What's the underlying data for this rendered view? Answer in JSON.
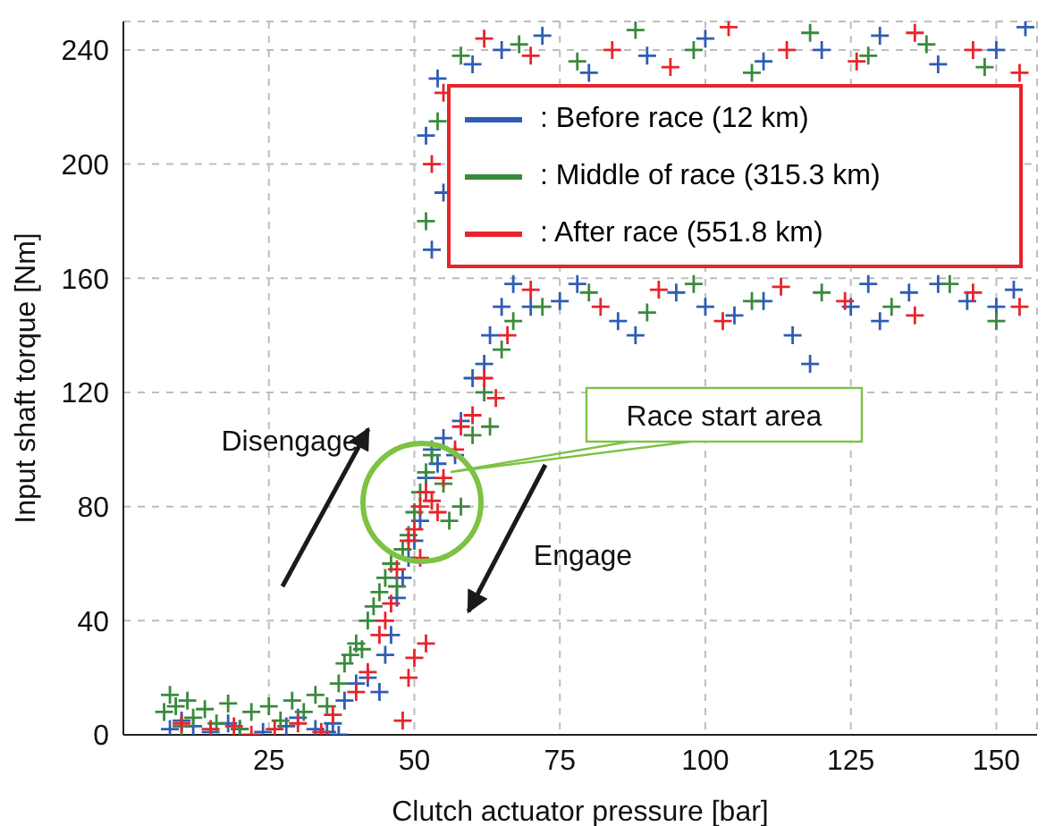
{
  "chart_data": {
    "type": "scatter",
    "xlabel": "Clutch actuator pressure [bar]",
    "ylabel": "Input shaft  torque [Nm]",
    "xlim": [
      0,
      157
    ],
    "xticks": [
      25,
      50,
      75,
      100,
      125,
      150
    ],
    "ylim": [
      0,
      250
    ],
    "yticks": [
      0,
      40,
      80,
      120,
      160,
      200,
      240
    ],
    "grid": true,
    "legend": "top right",
    "marker": "cross",
    "annotations": [
      "Disengage",
      "Engage",
      "Race start area"
    ],
    "series": [
      {
        "name": ": Before race (12 km)",
        "color": "#2f5db5",
        "x": [
          8,
          10,
          12,
          15,
          18,
          20,
          24,
          28,
          30,
          33,
          35,
          36,
          37,
          38,
          40,
          42,
          44,
          45,
          46,
          47,
          48,
          49,
          50,
          51,
          52,
          53,
          54,
          55,
          57,
          58,
          60,
          62,
          63,
          65,
          67,
          70,
          75,
          78,
          85,
          88,
          95,
          100,
          105,
          110,
          115,
          118,
          125,
          128,
          130,
          135,
          140,
          145,
          150,
          153,
          60,
          65,
          72,
          80,
          90,
          100,
          110,
          120,
          130,
          140,
          150,
          155,
          53,
          55,
          52,
          54
        ],
        "values": [
          2,
          5,
          3,
          1,
          4,
          2,
          1,
          3,
          6,
          2,
          1,
          4,
          0,
          12,
          18,
          20,
          15,
          28,
          35,
          48,
          55,
          62,
          68,
          75,
          90,
          100,
          95,
          104,
          98,
          110,
          125,
          130,
          140,
          150,
          158,
          150,
          152,
          158,
          145,
          140,
          155,
          150,
          147,
          152,
          140,
          130,
          150,
          158,
          145,
          155,
          158,
          152,
          150,
          156,
          235,
          240,
          245,
          232,
          238,
          244,
          236,
          240,
          245,
          235,
          240,
          248,
          170,
          190,
          210,
          230
        ]
      },
      {
        "name": ": Middle of race (315.3 km)",
        "color": "#3a8a3c",
        "x": [
          7,
          8,
          9,
          10,
          11,
          12,
          14,
          16,
          18,
          20,
          22,
          25,
          27,
          29,
          31,
          33,
          35,
          37,
          38,
          39,
          40,
          41,
          42,
          43,
          44,
          45,
          46,
          47,
          48,
          49,
          50,
          51,
          52,
          53,
          55,
          56,
          58,
          60,
          62,
          63,
          65,
          67,
          72,
          80,
          90,
          98,
          108,
          120,
          132,
          142,
          150,
          58,
          68,
          78,
          88,
          98,
          108,
          118,
          128,
          138,
          148,
          52,
          54
        ],
        "values": [
          8,
          14,
          10,
          3,
          12,
          6,
          9,
          4,
          11,
          2,
          8,
          10,
          5,
          12,
          8,
          14,
          10,
          18,
          25,
          28,
          32,
          30,
          40,
          45,
          50,
          55,
          60,
          52,
          65,
          70,
          78,
          85,
          92,
          98,
          88,
          75,
          80,
          105,
          120,
          108,
          135,
          145,
          150,
          155,
          148,
          158,
          152,
          155,
          150,
          158,
          145,
          238,
          242,
          236,
          247,
          240,
          232,
          246,
          238,
          242,
          234,
          180,
          215
        ]
      },
      {
        "name": ": After race (551.8 km)",
        "color": "#e8242c",
        "x": [
          10,
          15,
          19,
          22,
          26,
          30,
          34,
          36,
          40,
          42,
          44,
          45,
          46,
          47,
          51,
          49,
          50,
          51,
          52,
          53,
          54,
          49,
          50,
          52,
          48,
          55,
          57,
          58,
          60,
          62,
          64,
          66,
          70,
          82,
          92,
          103,
          113,
          124,
          136,
          146,
          154,
          62,
          70,
          84,
          94,
          104,
          114,
          126,
          136,
          146,
          154,
          53,
          55
        ],
        "values": [
          4,
          2,
          3,
          0,
          2,
          4,
          1,
          7,
          15,
          22,
          35,
          40,
          46,
          58,
          62,
          68,
          72,
          80,
          85,
          82,
          78,
          20,
          27,
          32,
          5,
          90,
          100,
          108,
          112,
          125,
          118,
          140,
          156,
          150,
          156,
          145,
          157,
          152,
          147,
          155,
          150,
          244,
          238,
          240,
          234,
          248,
          240,
          236,
          246,
          240,
          232,
          200,
          225
        ]
      }
    ]
  }
}
